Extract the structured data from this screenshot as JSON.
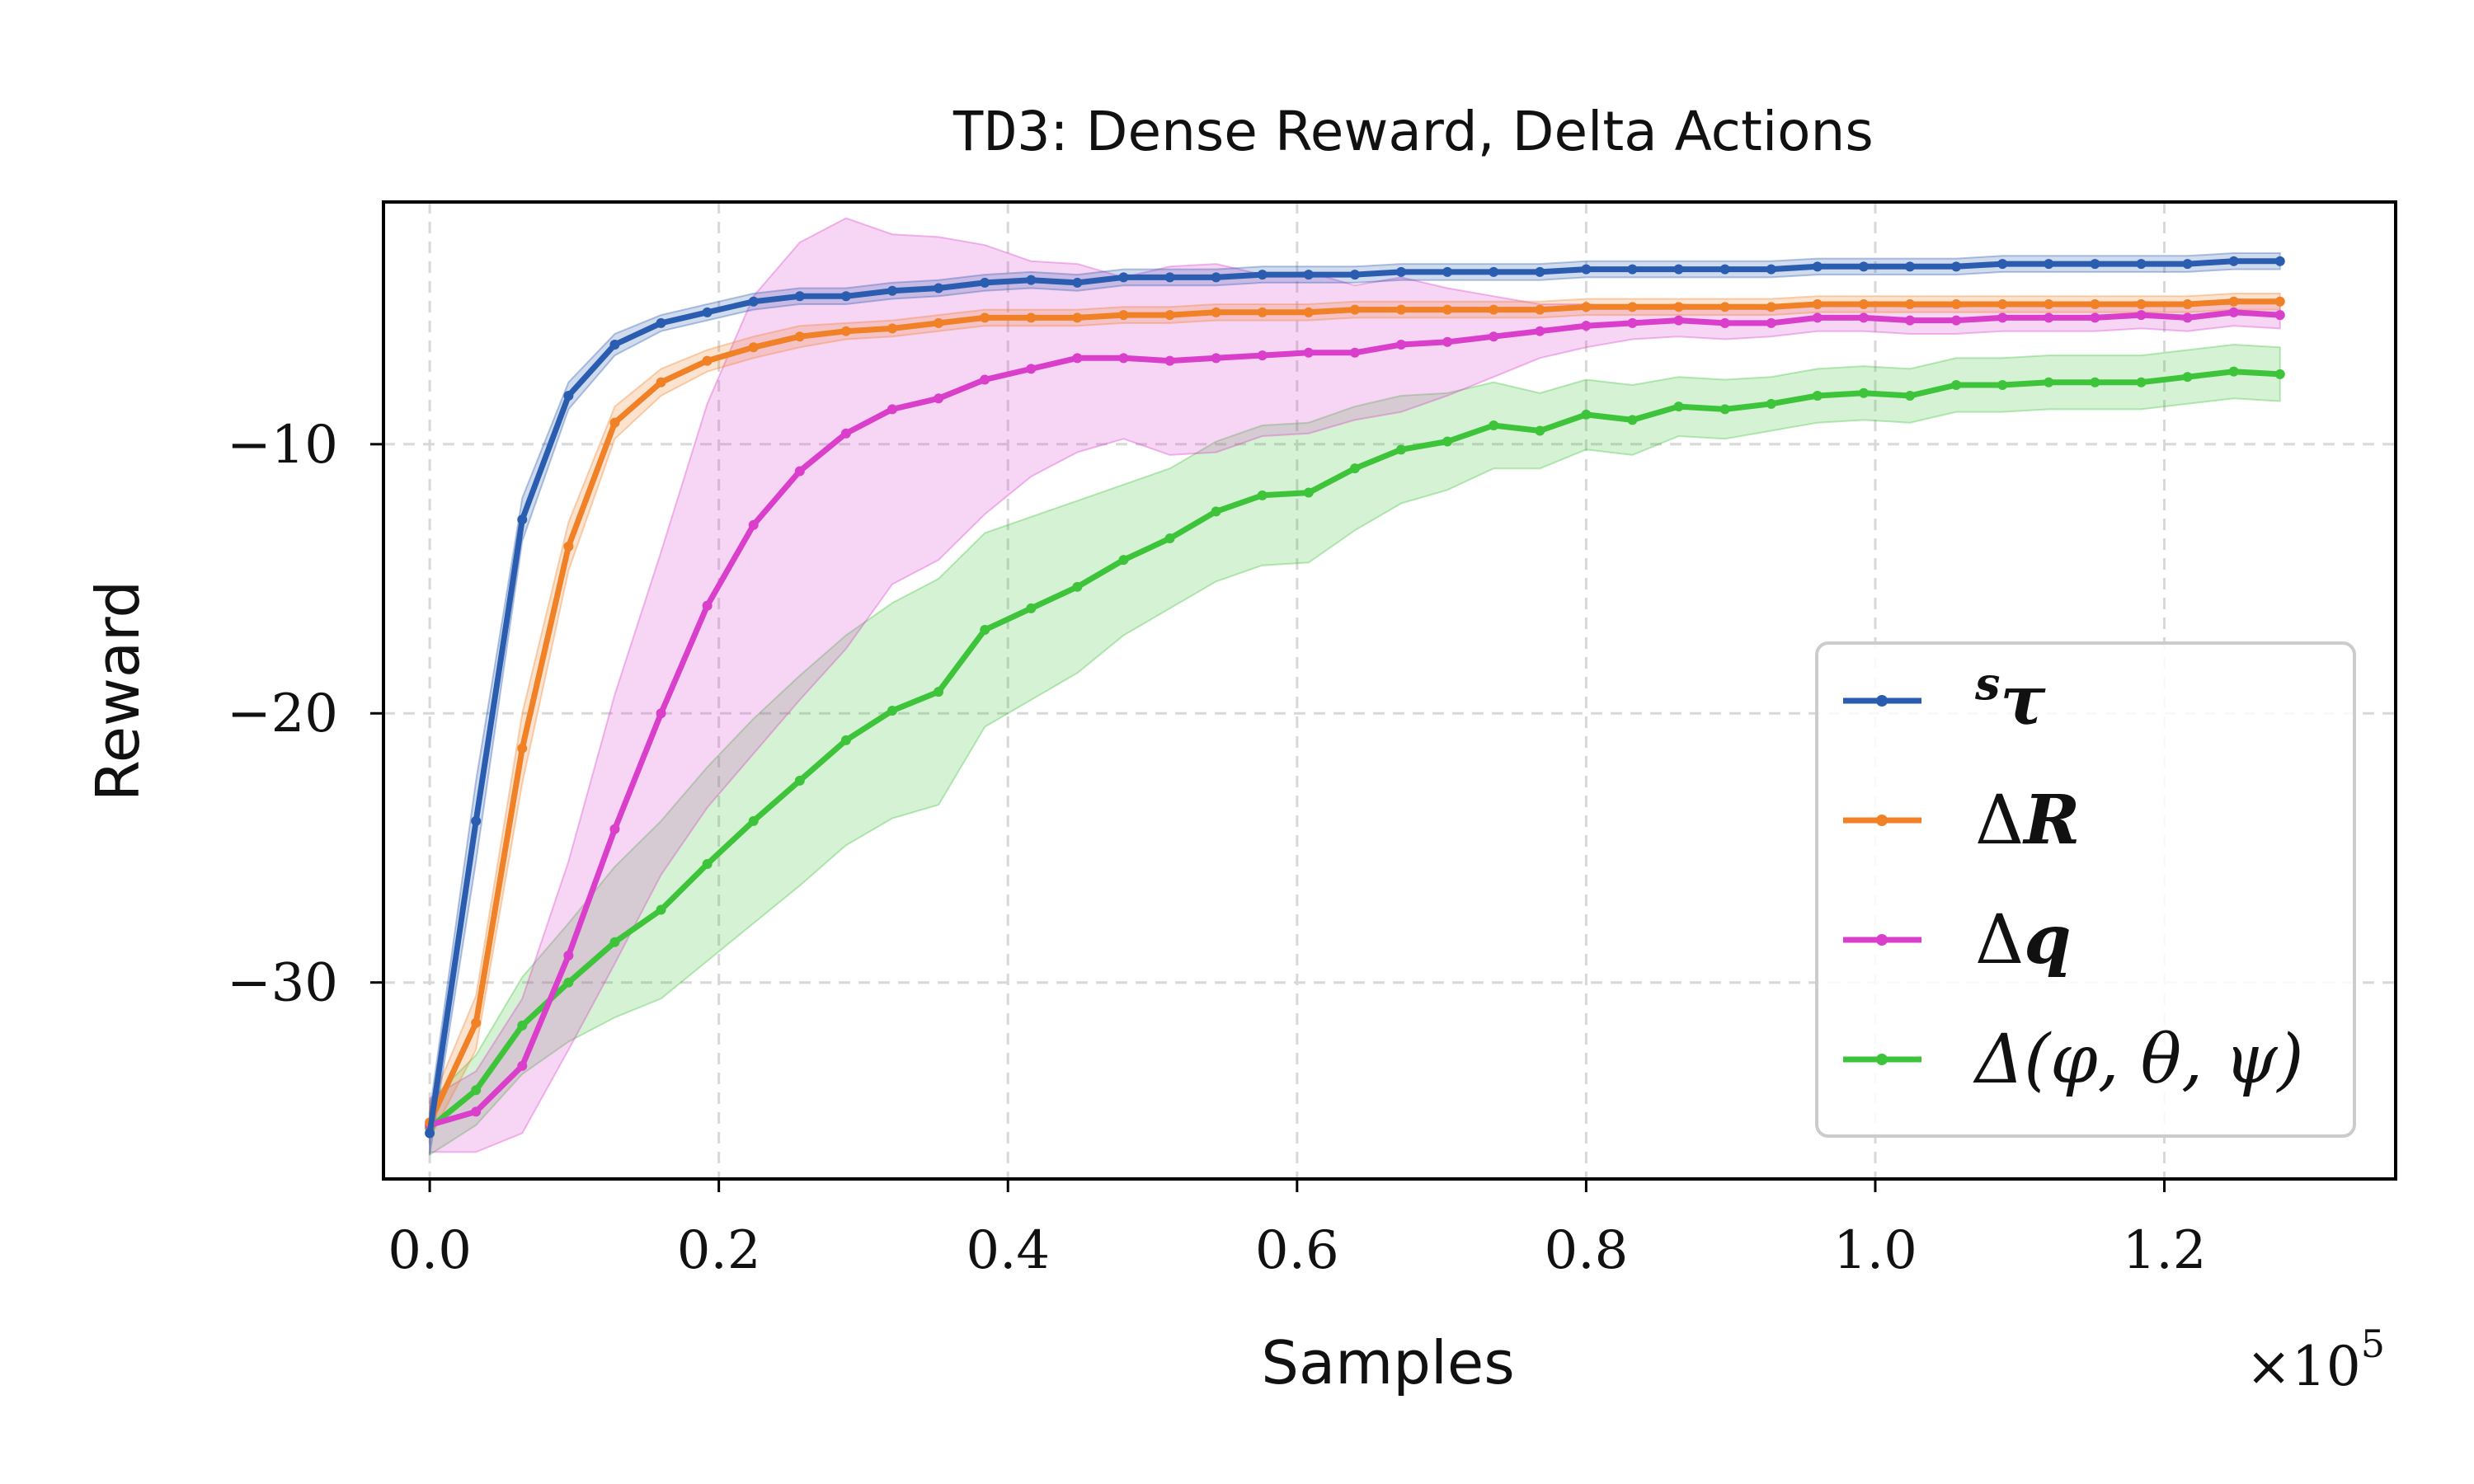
{
  "chart_data": {
    "type": "line",
    "title_prefix": "TD3",
    "title_rest": ": Dense Reward, Delta Actions",
    "xlabel": "Samples",
    "ylabel": "Reward",
    "x_multiplier_label": "×10",
    "x_multiplier_exp": "5",
    "xlim": [
      -0.032,
      1.36
    ],
    "ylim": [
      -37.3,
      -1.0
    ],
    "xticks": [
      0.0,
      0.2,
      0.4,
      0.6,
      0.8,
      1.0,
      1.2
    ],
    "xtick_labels": [
      "0.0",
      "0.2",
      "0.4",
      "0.6",
      "0.8",
      "1.0",
      "1.2"
    ],
    "yticks": [
      -30,
      -20,
      -10
    ],
    "ytick_labels": [
      "−30",
      "−20",
      "−10"
    ],
    "grid": true,
    "legend_position": "lower-right",
    "x": [
      0.0,
      0.032,
      0.064,
      0.096,
      0.128,
      0.16,
      0.192,
      0.224,
      0.256,
      0.288,
      0.32,
      0.352,
      0.384,
      0.416,
      0.448,
      0.48,
      0.512,
      0.544,
      0.576,
      0.608,
      0.64,
      0.672,
      0.704,
      0.736,
      0.768,
      0.8,
      0.832,
      0.864,
      0.896,
      0.928,
      0.96,
      0.992,
      1.024,
      1.056,
      1.088,
      1.12,
      1.152,
      1.184,
      1.216,
      1.248,
      1.28
    ],
    "series": [
      {
        "name": "sτ",
        "legend_main": "τ",
        "legend_sup": "s",
        "color": "#2a5db0",
        "values": [
          -35.6,
          -24,
          -12.8,
          -8.2,
          -6.3,
          -5.5,
          -5.1,
          -4.7,
          -4.5,
          -4.5,
          -4.3,
          -4.2,
          -4.0,
          -3.9,
          -4.0,
          -3.8,
          -3.8,
          -3.8,
          -3.7,
          -3.7,
          -3.7,
          -3.6,
          -3.6,
          -3.6,
          -3.6,
          -3.5,
          -3.5,
          -3.5,
          -3.5,
          -3.5,
          -3.4,
          -3.4,
          -3.4,
          -3.4,
          -3.3,
          -3.3,
          -3.3,
          -3.3,
          -3.3,
          -3.2,
          -3.2
        ],
        "band": [
          0.8,
          1.5,
          0.8,
          0.5,
          0.4,
          0.3,
          0.3,
          0.3,
          0.3,
          0.3,
          0.3,
          0.3,
          0.3,
          0.3,
          0.3,
          0.3,
          0.3,
          0.3,
          0.3,
          0.3,
          0.3,
          0.3,
          0.3,
          0.3,
          0.3,
          0.3,
          0.3,
          0.3,
          0.3,
          0.3,
          0.3,
          0.3,
          0.3,
          0.3,
          0.3,
          0.3,
          0.3,
          0.3,
          0.3,
          0.3,
          0.3
        ]
      },
      {
        "name": "ΔR",
        "legend_main": "ΔR",
        "legend_sup": "",
        "color": "#f08127",
        "values": [
          -35.2,
          -31.5,
          -21.3,
          -13.8,
          -9.2,
          -7.7,
          -6.9,
          -6.4,
          -6.0,
          -5.8,
          -5.7,
          -5.5,
          -5.3,
          -5.3,
          -5.3,
          -5.2,
          -5.2,
          -5.1,
          -5.1,
          -5.1,
          -5.0,
          -5.0,
          -5.0,
          -5.0,
          -5.0,
          -4.9,
          -4.9,
          -4.9,
          -4.9,
          -4.9,
          -4.8,
          -4.8,
          -4.8,
          -4.8,
          -4.8,
          -4.8,
          -4.8,
          -4.8,
          -4.8,
          -4.7,
          -4.7
        ],
        "band": [
          0.6,
          1.0,
          1.3,
          0.9,
          0.6,
          0.5,
          0.4,
          0.4,
          0.4,
          0.3,
          0.3,
          0.3,
          0.3,
          0.3,
          0.3,
          0.3,
          0.3,
          0.3,
          0.3,
          0.3,
          0.3,
          0.3,
          0.3,
          0.3,
          0.3,
          0.3,
          0.3,
          0.3,
          0.3,
          0.3,
          0.3,
          0.3,
          0.3,
          0.3,
          0.3,
          0.3,
          0.3,
          0.3,
          0.3,
          0.3,
          0.3
        ]
      },
      {
        "name": "Δq",
        "legend_main": "Δq",
        "legend_sup": "",
        "color": "#d93fcb",
        "values": [
          -35.3,
          -34.8,
          -33.1,
          -29.0,
          -24.3,
          -20.0,
          -16.0,
          -13.0,
          -11.0,
          -9.6,
          -8.7,
          -8.3,
          -7.6,
          -7.2,
          -6.8,
          -6.8,
          -6.9,
          -6.8,
          -6.7,
          -6.6,
          -6.6,
          -6.3,
          -6.2,
          -6.0,
          -5.8,
          -5.6,
          -5.5,
          -5.4,
          -5.5,
          -5.5,
          -5.3,
          -5.3,
          -5.4,
          -5.4,
          -5.3,
          -5.3,
          -5.3,
          -5.2,
          -5.3,
          -5.1,
          -5.2
        ],
        "band": [
          1.0,
          1.5,
          2.5,
          3.5,
          5.0,
          6.0,
          7.5,
          8.5,
          8.5,
          8.0,
          6.5,
          6.0,
          5.0,
          4.0,
          3.5,
          3.0,
          3.5,
          3.5,
          3.0,
          3.0,
          2.5,
          2.5,
          2.0,
          1.5,
          1.0,
          0.8,
          0.6,
          0.6,
          0.6,
          0.5,
          0.5,
          0.5,
          0.5,
          0.5,
          0.5,
          0.5,
          0.5,
          0.5,
          0.5,
          0.5,
          0.5
        ]
      },
      {
        "name": "Δ(φ,θ,ψ)",
        "legend_main": "Δ(φ, θ, ψ)",
        "legend_sup": "",
        "color": "#3ec43a",
        "values": [
          -35.4,
          -34.0,
          -31.6,
          -30.0,
          -28.5,
          -27.3,
          -25.6,
          -24.0,
          -22.5,
          -21.0,
          -19.9,
          -19.2,
          -16.9,
          -16.1,
          -15.3,
          -14.3,
          -13.5,
          -12.5,
          -11.9,
          -11.8,
          -10.9,
          -10.2,
          -9.9,
          -9.3,
          -9.5,
          -8.9,
          -9.1,
          -8.6,
          -8.7,
          -8.5,
          -8.2,
          -8.1,
          -8.2,
          -7.8,
          -7.8,
          -7.7,
          -7.7,
          -7.7,
          -7.5,
          -7.3,
          -7.4
        ],
        "band": [
          1.0,
          1.3,
          1.8,
          2.2,
          2.8,
          3.3,
          3.6,
          3.8,
          3.9,
          3.9,
          4.0,
          4.2,
          3.6,
          3.4,
          3.2,
          2.8,
          2.6,
          2.6,
          2.6,
          2.6,
          2.3,
          2.0,
          1.8,
          1.6,
          1.4,
          1.3,
          1.3,
          1.1,
          1.1,
          1.0,
          1.0,
          1.0,
          1.0,
          1.0,
          1.0,
          1.0,
          1.0,
          1.0,
          1.0,
          1.0,
          1.0
        ]
      }
    ]
  }
}
